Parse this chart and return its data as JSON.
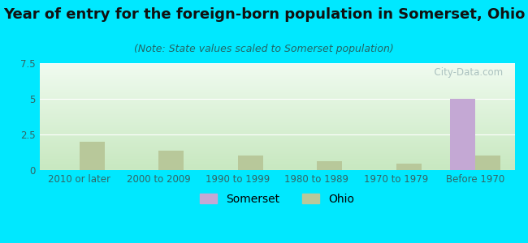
{
  "title": "Year of entry for the foreign-born population in Somerset, Ohio",
  "subtitle": "(Note: State values scaled to Somerset population)",
  "categories": [
    "2010 or later",
    "2000 to 2009",
    "1990 to 1999",
    "1980 to 1989",
    "1970 to 1979",
    "Before 1970"
  ],
  "somerset_values": [
    0,
    0,
    0,
    0,
    0,
    5.0
  ],
  "ohio_values": [
    2.0,
    1.35,
    1.0,
    0.65,
    0.45,
    1.0
  ],
  "somerset_color": "#c4a8d4",
  "ohio_color": "#b8c89a",
  "background_outer": "#00e8ff",
  "ylim": [
    0,
    7.5
  ],
  "yticks": [
    0,
    2.5,
    5,
    7.5
  ],
  "bar_width": 0.32,
  "title_fontsize": 13,
  "subtitle_fontsize": 9,
  "tick_fontsize": 8.5,
  "legend_fontsize": 10,
  "watermark": "  City-Data.com",
  "grad_top": "#f0fbf0",
  "grad_bottom": "#c8e8c0"
}
